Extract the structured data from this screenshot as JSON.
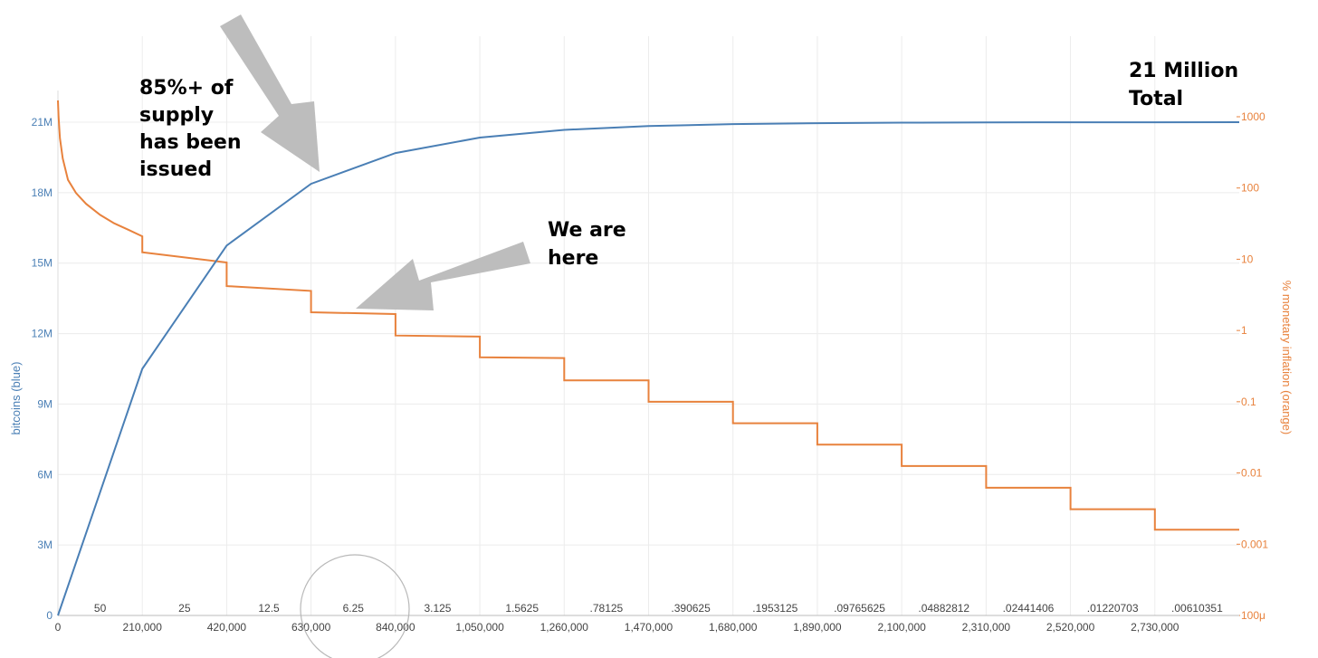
{
  "chart_data": {
    "type": "line",
    "xlabel": "",
    "ylabel_left": "bitcoins (blue)",
    "ylabel_right": "% monetary inflation (orange)",
    "xlim": [
      0,
      2940000
    ],
    "ylim_left": [
      0,
      22000000
    ],
    "ylim_right_log10": [
      -4,
      3.3
    ],
    "grid": true,
    "x_ticks": [
      {
        "value": 0,
        "label": "0"
      },
      {
        "value": 210000,
        "label": "210,000"
      },
      {
        "value": 420000,
        "label": "420,000"
      },
      {
        "value": 630000,
        "label": "630,000"
      },
      {
        "value": 840000,
        "label": "840,000"
      },
      {
        "value": 1050000,
        "label": "1,050,000"
      },
      {
        "value": 1260000,
        "label": "1,260,000"
      },
      {
        "value": 1470000,
        "label": "1,470,000"
      },
      {
        "value": 1680000,
        "label": "1,680,000"
      },
      {
        "value": 1890000,
        "label": "1,890,000"
      },
      {
        "value": 2100000,
        "label": "2,100,000"
      },
      {
        "value": 2310000,
        "label": "2,310,000"
      },
      {
        "value": 2520000,
        "label": "2,520,000"
      },
      {
        "value": 2730000,
        "label": "2,730,000"
      }
    ],
    "y_left_ticks": [
      {
        "value": 0,
        "label": "0"
      },
      {
        "value": 3000000,
        "label": "3M"
      },
      {
        "value": 6000000,
        "label": "6M"
      },
      {
        "value": 9000000,
        "label": "9M"
      },
      {
        "value": 12000000,
        "label": "12M"
      },
      {
        "value": 15000000,
        "label": "15M"
      },
      {
        "value": 18000000,
        "label": "18M"
      },
      {
        "value": 21000000,
        "label": "21M"
      }
    ],
    "y_right_ticks": [
      {
        "value": 0.0001,
        "label": "100μ"
      },
      {
        "value": 0.001,
        "label": "0.001"
      },
      {
        "value": 0.01,
        "label": "0.01"
      },
      {
        "value": 0.1,
        "label": "0.1"
      },
      {
        "value": 1,
        "label": "1"
      },
      {
        "value": 10,
        "label": "10"
      },
      {
        "value": 100,
        "label": "100"
      },
      {
        "value": 1000,
        "label": "1000"
      }
    ],
    "block_rewards": [
      {
        "x": 105000,
        "label": "50"
      },
      {
        "x": 315000,
        "label": "25"
      },
      {
        "x": 525000,
        "label": "12.5"
      },
      {
        "x": 735000,
        "label": "6.25"
      },
      {
        "x": 945000,
        "label": "3.125"
      },
      {
        "x": 1155000,
        "label": "1.5625"
      },
      {
        "x": 1365000,
        "label": ".78125"
      },
      {
        "x": 1575000,
        "label": ".390625"
      },
      {
        "x": 1785000,
        "label": ".1953125"
      },
      {
        "x": 1995000,
        "label": ".09765625"
      },
      {
        "x": 2205000,
        "label": ".04882812"
      },
      {
        "x": 2415000,
        "label": ".02441406"
      },
      {
        "x": 2625000,
        "label": ".01220703"
      },
      {
        "x": 2835000,
        "label": ".00610351"
      }
    ],
    "series": [
      {
        "name": "bitcoins (blue)",
        "axis": "left",
        "color": "#4a7fb5",
        "points": [
          [
            0,
            0
          ],
          [
            210000,
            10500000
          ],
          [
            420000,
            15750000
          ],
          [
            630000,
            18375000
          ],
          [
            840000,
            19687500
          ],
          [
            1050000,
            20343750
          ],
          [
            1260000,
            20671875
          ],
          [
            1470000,
            20835938
          ],
          [
            1680000,
            20917969
          ],
          [
            1890000,
            20958984
          ],
          [
            2100000,
            20979492
          ],
          [
            2310000,
            20989746
          ],
          [
            2520000,
            20994873
          ],
          [
            2730000,
            20997437
          ],
          [
            2940000,
            20998718
          ]
        ]
      },
      {
        "name": "% monetary inflation (orange)",
        "axis": "right",
        "color": "#e8823d",
        "decay_start": [
          [
            0,
            1700
          ],
          [
            1500,
            1000
          ],
          [
            5000,
            500
          ],
          [
            12000,
            260
          ],
          [
            25000,
            130
          ],
          [
            45000,
            85
          ],
          [
            70000,
            60
          ],
          [
            105000,
            42
          ],
          [
            140000,
            32
          ],
          [
            175000,
            26
          ],
          [
            210000,
            21
          ]
        ],
        "steps": [
          {
            "x0": 210000,
            "x1": 420000,
            "from": 12.5,
            "to": 9.0
          },
          {
            "x0": 420000,
            "x1": 630000,
            "from": 4.2,
            "to": 3.6
          },
          {
            "x0": 630000,
            "x1": 840000,
            "from": 1.8,
            "to": 1.7
          },
          {
            "x0": 840000,
            "x1": 1050000,
            "from": 0.85,
            "to": 0.82
          },
          {
            "x0": 1050000,
            "x1": 1260000,
            "from": 0.42,
            "to": 0.41
          },
          {
            "x0": 1260000,
            "x1": 1470000,
            "from": 0.2,
            "to": 0.2
          },
          {
            "x0": 1470000,
            "x1": 1680000,
            "from": 0.1,
            "to": 0.1
          },
          {
            "x0": 1680000,
            "x1": 1890000,
            "from": 0.05,
            "to": 0.05
          },
          {
            "x0": 1890000,
            "x1": 2100000,
            "from": 0.025,
            "to": 0.025
          },
          {
            "x0": 2100000,
            "x1": 2310000,
            "from": 0.0125,
            "to": 0.0125
          },
          {
            "x0": 2310000,
            "x1": 2520000,
            "from": 0.0062,
            "to": 0.0062
          },
          {
            "x0": 2520000,
            "x1": 2730000,
            "from": 0.0031,
            "to": 0.0031
          },
          {
            "x0": 2730000,
            "x1": 2940000,
            "from": 0.0016,
            "to": 0.0016
          }
        ]
      }
    ],
    "annotations": [
      {
        "id": "issued",
        "lines": [
          "85%+ of",
          "supply",
          "has been",
          "issued"
        ]
      },
      {
        "id": "here",
        "lines": [
          "We are",
          "here"
        ]
      },
      {
        "id": "total",
        "lines": [
          "21 Million",
          "Total"
        ]
      }
    ],
    "highlight": {
      "x": 735000,
      "description": "circle around 6.25 block reward"
    }
  }
}
